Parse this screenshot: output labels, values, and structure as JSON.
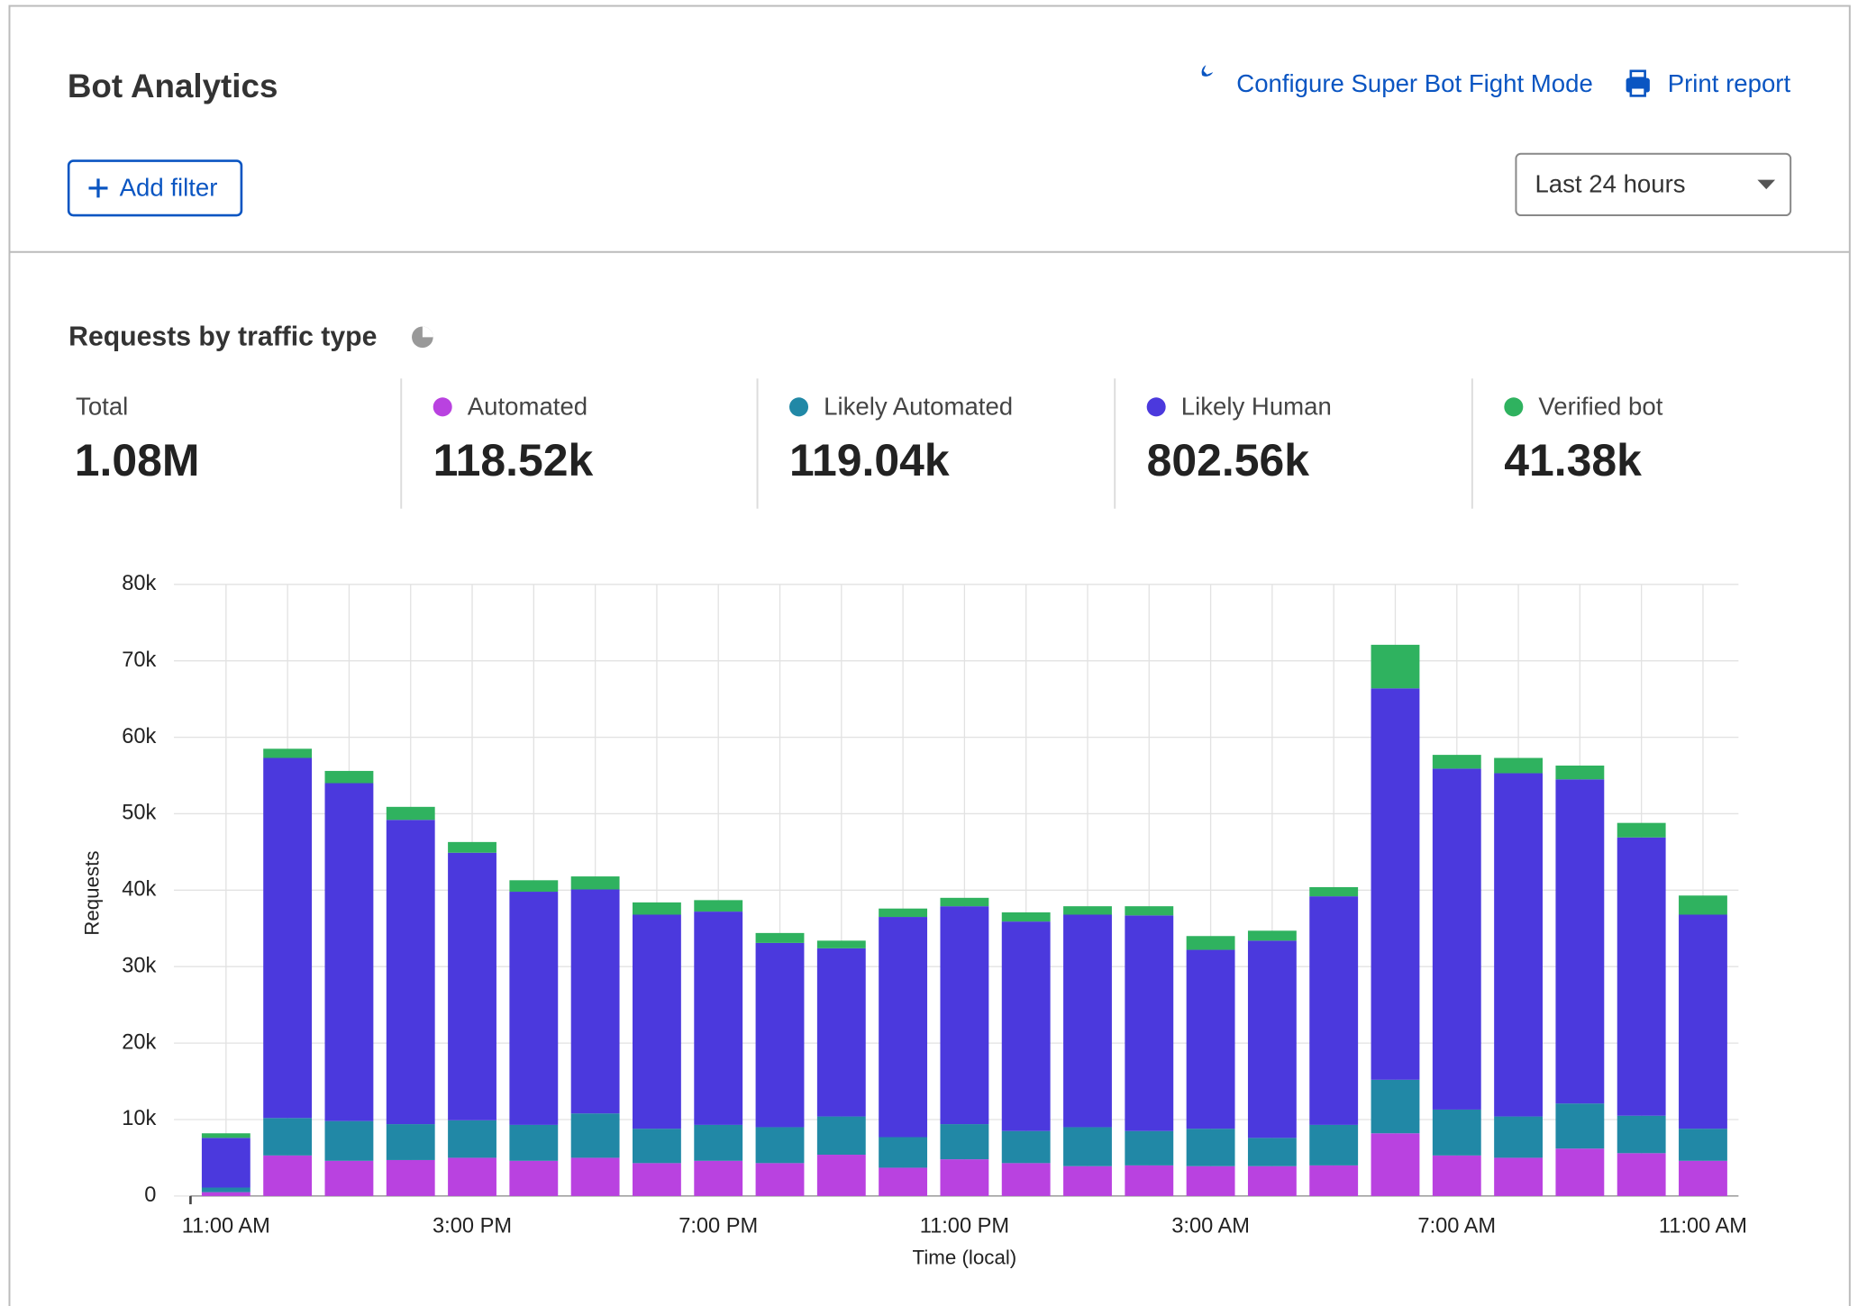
{
  "header": {
    "title": "Bot Analytics",
    "configure_link": "Configure Super Bot Fight Mode",
    "print_link": "Print report",
    "add_filter": "Add filter",
    "time_range": "Last 24 hours"
  },
  "summary": {
    "total_label": "Total",
    "total_value": "1.08M",
    "series_totals": [
      "118.52k",
      "119.04k",
      "802.56k",
      "41.38k"
    ]
  },
  "chart_data": {
    "type": "stacked-bar",
    "title": "Requests by traffic type",
    "x_label": "Time (local)",
    "y_label": "Requests",
    "categories": [
      "11:00 AM",
      null,
      null,
      null,
      "3:00 PM",
      null,
      null,
      null,
      "7:00 PM",
      null,
      null,
      null,
      "11:00 PM",
      null,
      null,
      null,
      "3:00 AM",
      null,
      null,
      null,
      "7:00 AM",
      null,
      null,
      null,
      "11:00 AM"
    ],
    "series": [
      {
        "name": "Automated",
        "color": "#b942e0",
        "values": [
          500,
          5300,
          4600,
          4700,
          5000,
          4600,
          5000,
          4300,
          4600,
          4300,
          5400,
          3700,
          4800,
          4300,
          3900,
          4000,
          3900,
          3900,
          4000,
          8200,
          5300,
          5000,
          6200,
          5600,
          4600
        ]
      },
      {
        "name": "Likely Automated",
        "color": "#2188a6",
        "values": [
          600,
          4900,
          5200,
          4700,
          4900,
          4700,
          5800,
          4500,
          4700,
          4700,
          5000,
          4000,
          4600,
          4200,
          5100,
          4500,
          4900,
          3700,
          5300,
          7000,
          6000,
          5400,
          5900,
          4900,
          4200
        ]
      },
      {
        "name": "Likely Human",
        "color": "#4b39dd",
        "values": [
          6500,
          47100,
          44200,
          39800,
          35000,
          30500,
          29300,
          28000,
          27900,
          24100,
          22000,
          28800,
          28500,
          27400,
          27800,
          28200,
          23400,
          25800,
          29900,
          51200,
          44600,
          44900,
          42400,
          36400,
          28000
        ]
      },
      {
        "name": "Verified bot",
        "color": "#2fb25f",
        "values": [
          600,
          1200,
          1600,
          1700,
          1400,
          1500,
          1700,
          1600,
          1500,
          1300,
          1000,
          1100,
          1100,
          1200,
          1100,
          1200,
          1800,
          1300,
          1200,
          5700,
          1800,
          2000,
          1800,
          1900,
          2500
        ]
      }
    ],
    "ylim": [
      0,
      80000
    ],
    "yticks": [
      0,
      {
        "value": 10000,
        "label": "10k"
      },
      {
        "value": 20000,
        "label": "20k"
      },
      {
        "value": 30000,
        "label": "30k"
      },
      {
        "value": 40000,
        "label": "40k"
      },
      {
        "value": 50000,
        "label": "50k"
      },
      {
        "value": 60000,
        "label": "60k"
      },
      {
        "value": 70000,
        "label": "70k"
      },
      {
        "value": 80000,
        "label": "80k"
      }
    ],
    "grid": true
  }
}
